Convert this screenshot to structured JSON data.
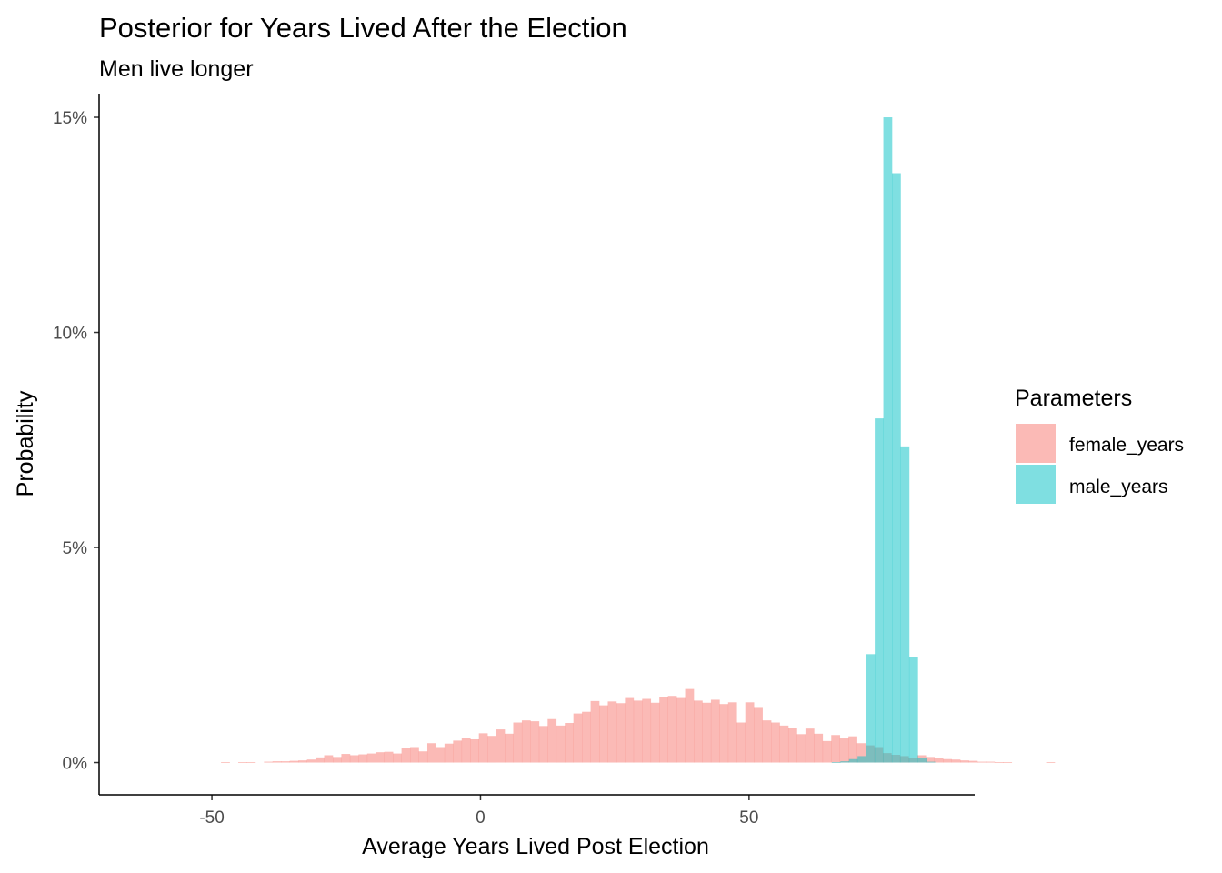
{
  "chart_data": {
    "type": "histogram",
    "title": "Posterior for Years Lived After the Election",
    "subtitle": "Men live longer",
    "xlabel": "Average Years Lived Post Election",
    "ylabel": "Probability",
    "xlim": [
      -71,
      92
    ],
    "ylim": [
      -0.0075,
      0.1555
    ],
    "x_ticks": [
      -50,
      0,
      50
    ],
    "x_tick_labels": [
      "-50",
      "0",
      "50"
    ],
    "y_ticks": [
      0,
      0.05,
      0.1,
      0.15
    ],
    "y_tick_labels": [
      "0%",
      "5%",
      "10%",
      "15%"
    ],
    "bin_width": 1.6,
    "legend": {
      "title": "Parameters",
      "placement": "right"
    },
    "series": [
      {
        "name": "female_years",
        "color": "#F8766D",
        "bin_start": -48.3,
        "values": [
          0.0001,
          0,
          0.0001,
          0.0001,
          0,
          0.0002,
          0.0003,
          0.0003,
          0.0004,
          0.0005,
          0.0007,
          0.0012,
          0.0017,
          0.0013,
          0.002,
          0.0017,
          0.0019,
          0.0021,
          0.0024,
          0.0025,
          0.0021,
          0.0033,
          0.0036,
          0.0026,
          0.0045,
          0.0036,
          0.0044,
          0.0051,
          0.0058,
          0.0054,
          0.0068,
          0.0062,
          0.0077,
          0.0067,
          0.0093,
          0.0098,
          0.0096,
          0.0085,
          0.0101,
          0.0086,
          0.0092,
          0.0114,
          0.0118,
          0.0143,
          0.0133,
          0.0142,
          0.0138,
          0.015,
          0.0144,
          0.0148,
          0.0139,
          0.0153,
          0.0155,
          0.015,
          0.0171,
          0.0144,
          0.0139,
          0.0146,
          0.0136,
          0.014,
          0.0093,
          0.014,
          0.0127,
          0.0098,
          0.0093,
          0.0086,
          0.008,
          0.0066,
          0.0079,
          0.0067,
          0.005,
          0.0064,
          0.0056,
          0.0061,
          0.0045,
          0.004,
          0.0036,
          0.0022,
          0.0018,
          0.0015,
          0.0011,
          0.0017,
          0.0013,
          0.001,
          0.0008,
          0.0007,
          0.0005,
          0.0004,
          0.0002,
          0.0002,
          0.0001,
          0.0001,
          0,
          0,
          0,
          0,
          0.0001
        ]
      },
      {
        "name": "male_years",
        "color": "#00BFC4",
        "bin_start": 65.4,
        "values": [
          0.0001,
          0.0003,
          0.0008,
          0.0015,
          0.0252,
          0.08,
          0.15,
          0.137,
          0.0735,
          0.0245,
          0.001,
          0.0002
        ]
      }
    ]
  }
}
